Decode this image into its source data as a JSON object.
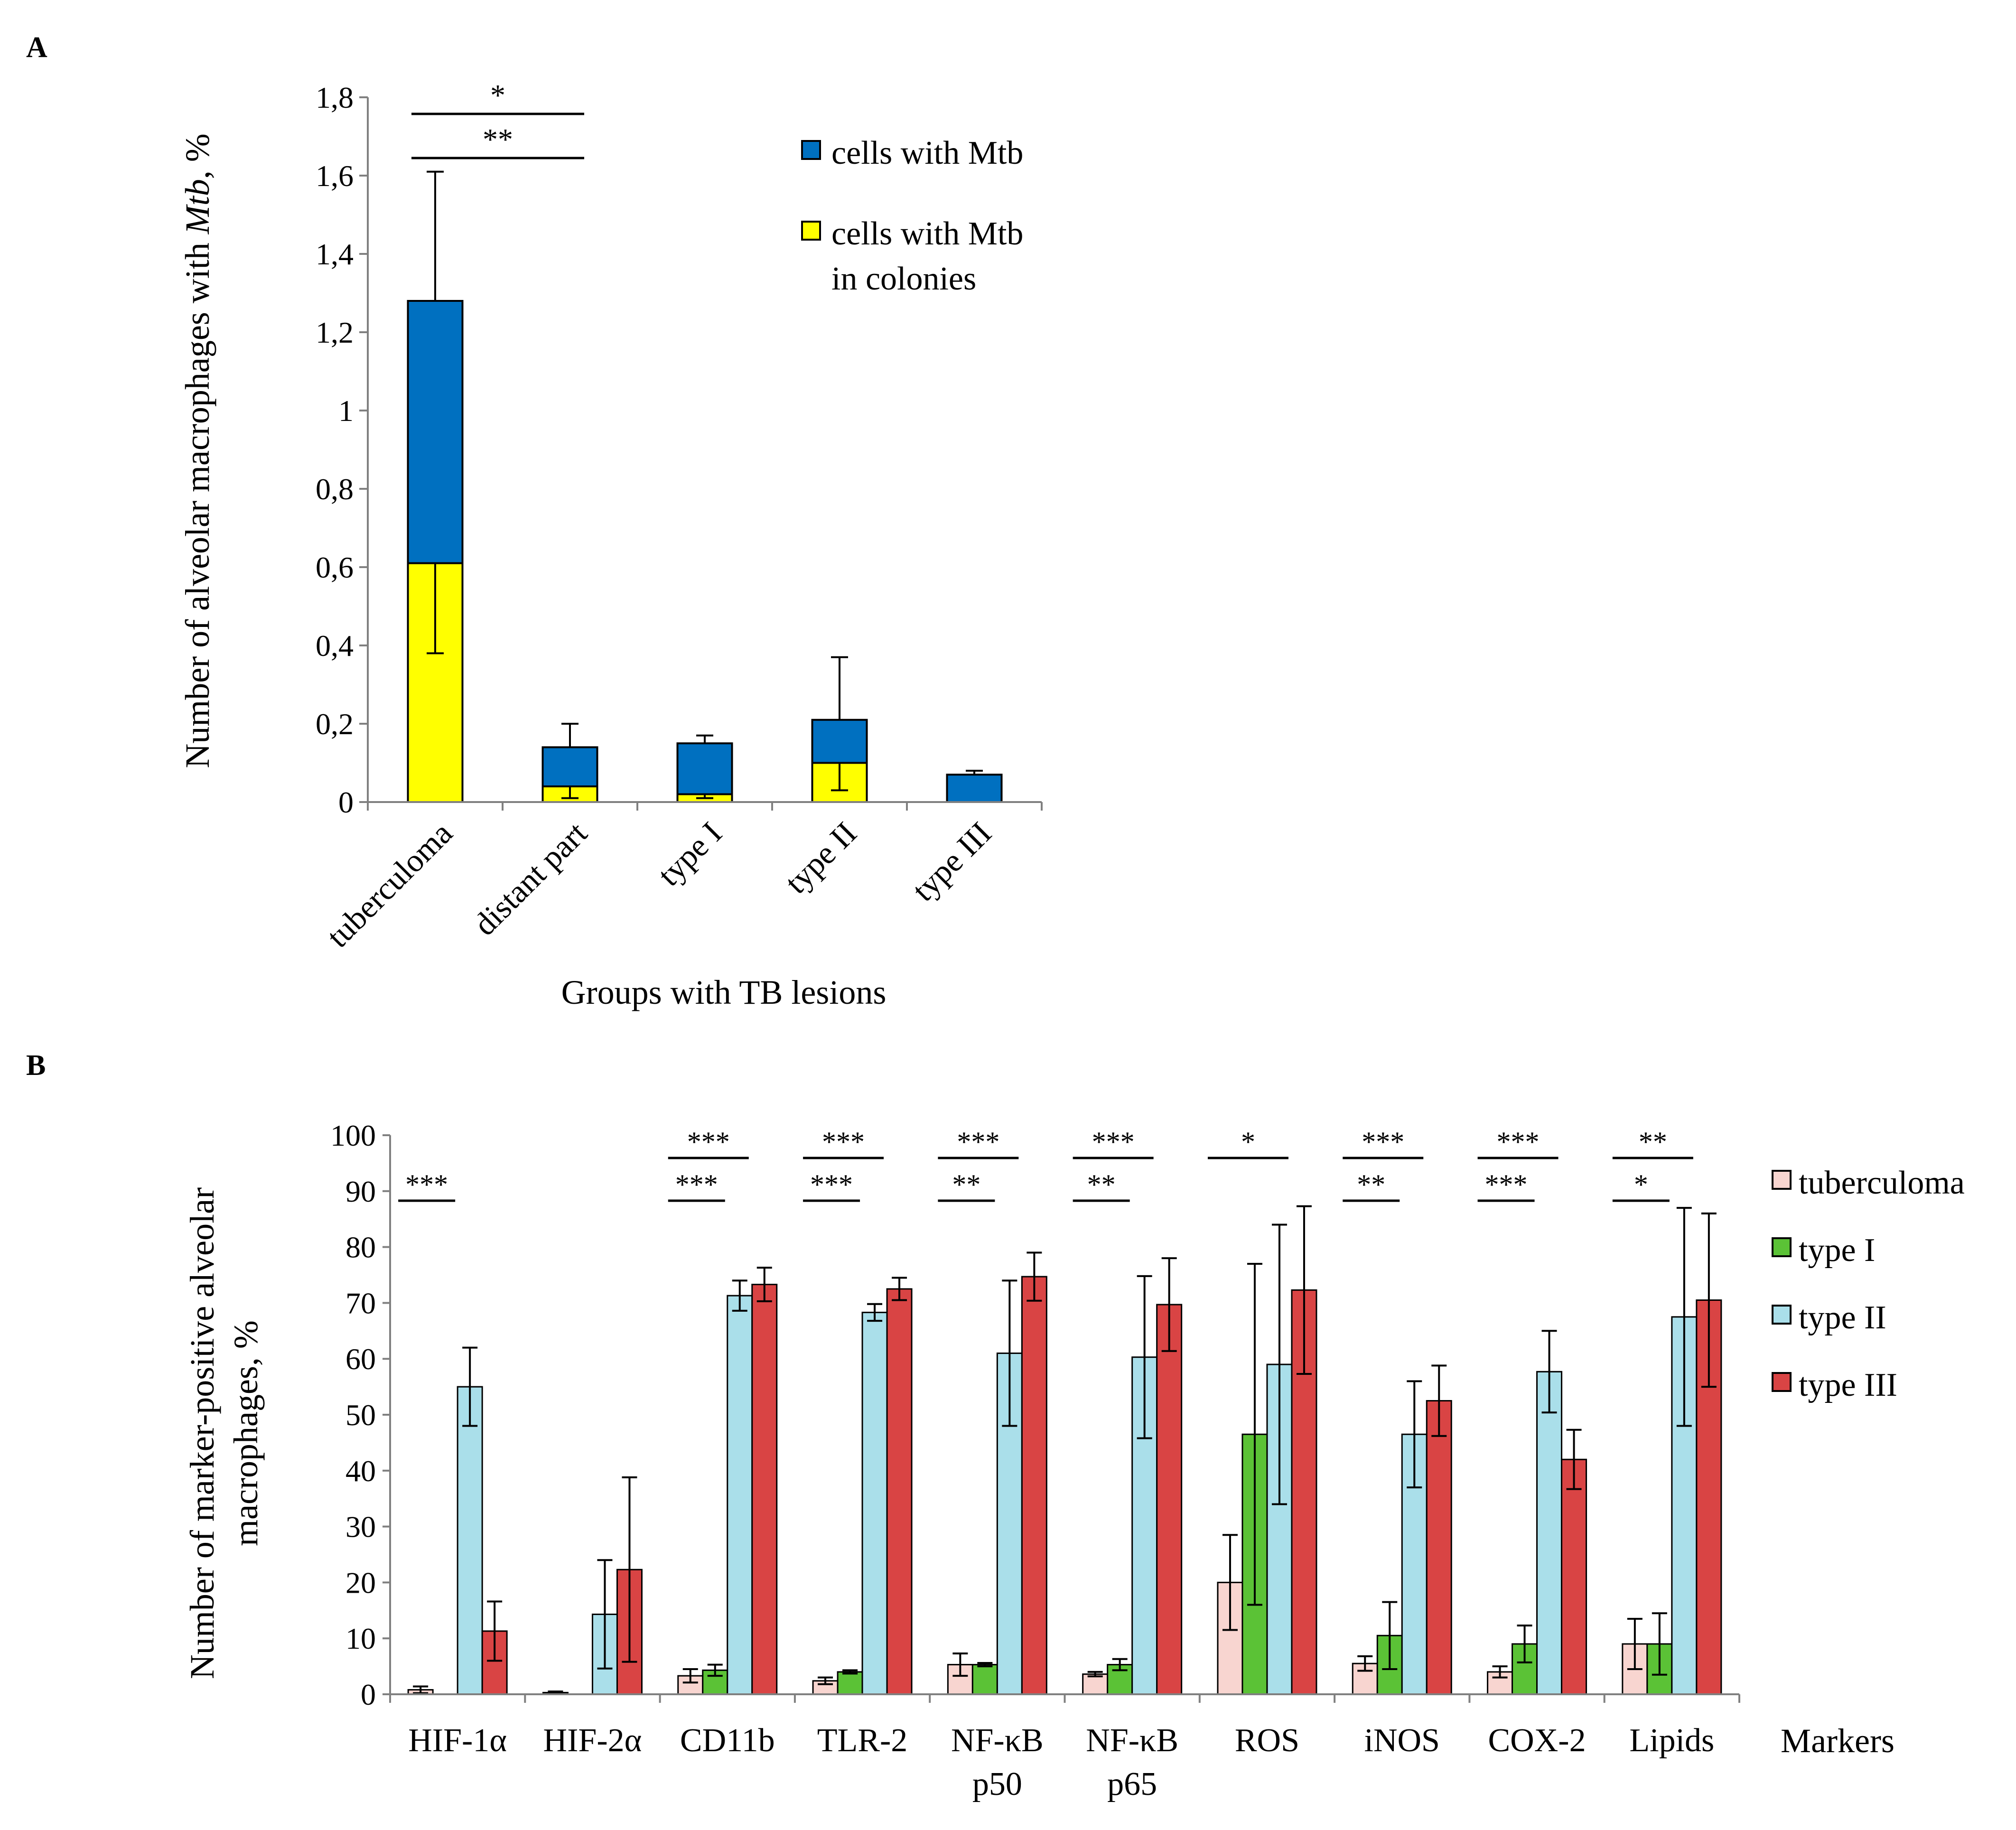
{
  "chart_data": [
    {
      "panel": "A",
      "type": "bar",
      "stacked": true,
      "categories": [
        "tuberculoma",
        "distant part",
        "type I",
        "type II",
        "type III"
      ],
      "xlabel": "Groups with TB lesions",
      "ylabel_parts": [
        "Number of alveolar macrophages with ",
        "Mtb",
        ", %"
      ],
      "ylim": [
        0,
        1.8
      ],
      "yticks": [
        "0",
        "0,2",
        "0,4",
        "0,6",
        "0,8",
        "1",
        "1,2",
        "1,4",
        "1,6",
        "1,8"
      ],
      "series": [
        {
          "name": "cells with Mtb in colonies",
          "legend_lines": [
            "cells with Mtb",
            "in colonies"
          ],
          "color": "#ffff00",
          "values": [
            0.61,
            0.04,
            0.02,
            0.1,
            0.0
          ],
          "err_low": [
            0.23,
            0.03,
            0.01,
            0.07,
            null
          ]
        },
        {
          "name": "cells with Mtb",
          "legend_lines": [
            "cells with Mtb"
          ],
          "color": "#0070c0",
          "totals": [
            1.28,
            0.14,
            0.15,
            0.21,
            0.07
          ],
          "err_high": [
            0.33,
            0.06,
            0.02,
            0.16,
            0.01
          ]
        }
      ],
      "significance": [
        {
          "from": 0,
          "to": 1,
          "label": "*"
        },
        {
          "from": 0,
          "to": 1,
          "label": "**"
        }
      ]
    },
    {
      "panel": "B",
      "type": "bar",
      "categories": [
        [
          "HIF-1α"
        ],
        [
          "HIF-2α"
        ],
        [
          "CD11b"
        ],
        [
          "TLR-2"
        ],
        [
          "NF-κB",
          "p50"
        ],
        [
          "NF-κB",
          "p65"
        ],
        [
          "ROS"
        ],
        [
          "iNOS"
        ],
        [
          "COX-2"
        ],
        [
          "Lipids"
        ]
      ],
      "xlabel": "Markers",
      "ylabel_lines": [
        "Number of marker-positive alveolar",
        "macrophages, %"
      ],
      "ylim": [
        0,
        100
      ],
      "yticks": [
        "0",
        "10",
        "20",
        "30",
        "40",
        "50",
        "60",
        "70",
        "80",
        "90",
        "100"
      ],
      "series": [
        {
          "name": "tuberculoma",
          "color": "#f8d5d0",
          "values": [
            0.8,
            0.3,
            3.3,
            2.4,
            5.3,
            3.6,
            20.0,
            5.5,
            4.0,
            9.0
          ],
          "err": [
            0.6,
            0.2,
            1.2,
            0.6,
            2.0,
            0.4,
            8.5,
            1.3,
            1.0,
            4.5
          ]
        },
        {
          "name": "type I",
          "color": "#5bc236",
          "values": [
            null,
            null,
            4.3,
            4.0,
            5.3,
            5.3,
            46.5,
            10.5,
            9.0,
            9.0
          ],
          "err": [
            null,
            null,
            1.0,
            0.3,
            0.3,
            1.0,
            30.5,
            6.0,
            3.3,
            5.5
          ]
        },
        {
          "name": "type II",
          "color": "#aadfea",
          "values": [
            55.0,
            14.3,
            71.3,
            68.3,
            61.0,
            60.3,
            59.0,
            46.5,
            57.7,
            67.5
          ],
          "err": [
            7.0,
            9.7,
            2.7,
            1.5,
            13.0,
            14.5,
            25.0,
            9.5,
            7.3,
            19.5
          ]
        },
        {
          "name": "type III",
          "color": "#d94444",
          "values": [
            11.3,
            22.3,
            73.3,
            72.5,
            74.7,
            69.7,
            72.3,
            52.5,
            42.0,
            70.5
          ],
          "err": [
            5.3,
            16.5,
            3.0,
            2.0,
            4.3,
            8.3,
            15.0,
            6.3,
            5.3,
            15.5
          ]
        }
      ],
      "significance": [
        {
          "cat": 0,
          "row": 2,
          "label": "***"
        },
        {
          "cat": 2,
          "row": 1,
          "label": "***"
        },
        {
          "cat": 2,
          "row": 2,
          "label": "***"
        },
        {
          "cat": 3,
          "row": 1,
          "label": "***"
        },
        {
          "cat": 3,
          "row": 2,
          "label": "***"
        },
        {
          "cat": 4,
          "row": 1,
          "label": "***"
        },
        {
          "cat": 4,
          "row": 2,
          "label": "**"
        },
        {
          "cat": 5,
          "row": 1,
          "label": "***"
        },
        {
          "cat": 5,
          "row": 2,
          "label": "**"
        },
        {
          "cat": 6,
          "row": 1,
          "label": "*"
        },
        {
          "cat": 7,
          "row": 1,
          "label": "***"
        },
        {
          "cat": 7,
          "row": 2,
          "label": "**"
        },
        {
          "cat": 8,
          "row": 1,
          "label": "***"
        },
        {
          "cat": 8,
          "row": 2,
          "label": "***"
        },
        {
          "cat": 9,
          "row": 1,
          "label": "**"
        },
        {
          "cat": 9,
          "row": 2,
          "label": "*"
        }
      ]
    }
  ]
}
